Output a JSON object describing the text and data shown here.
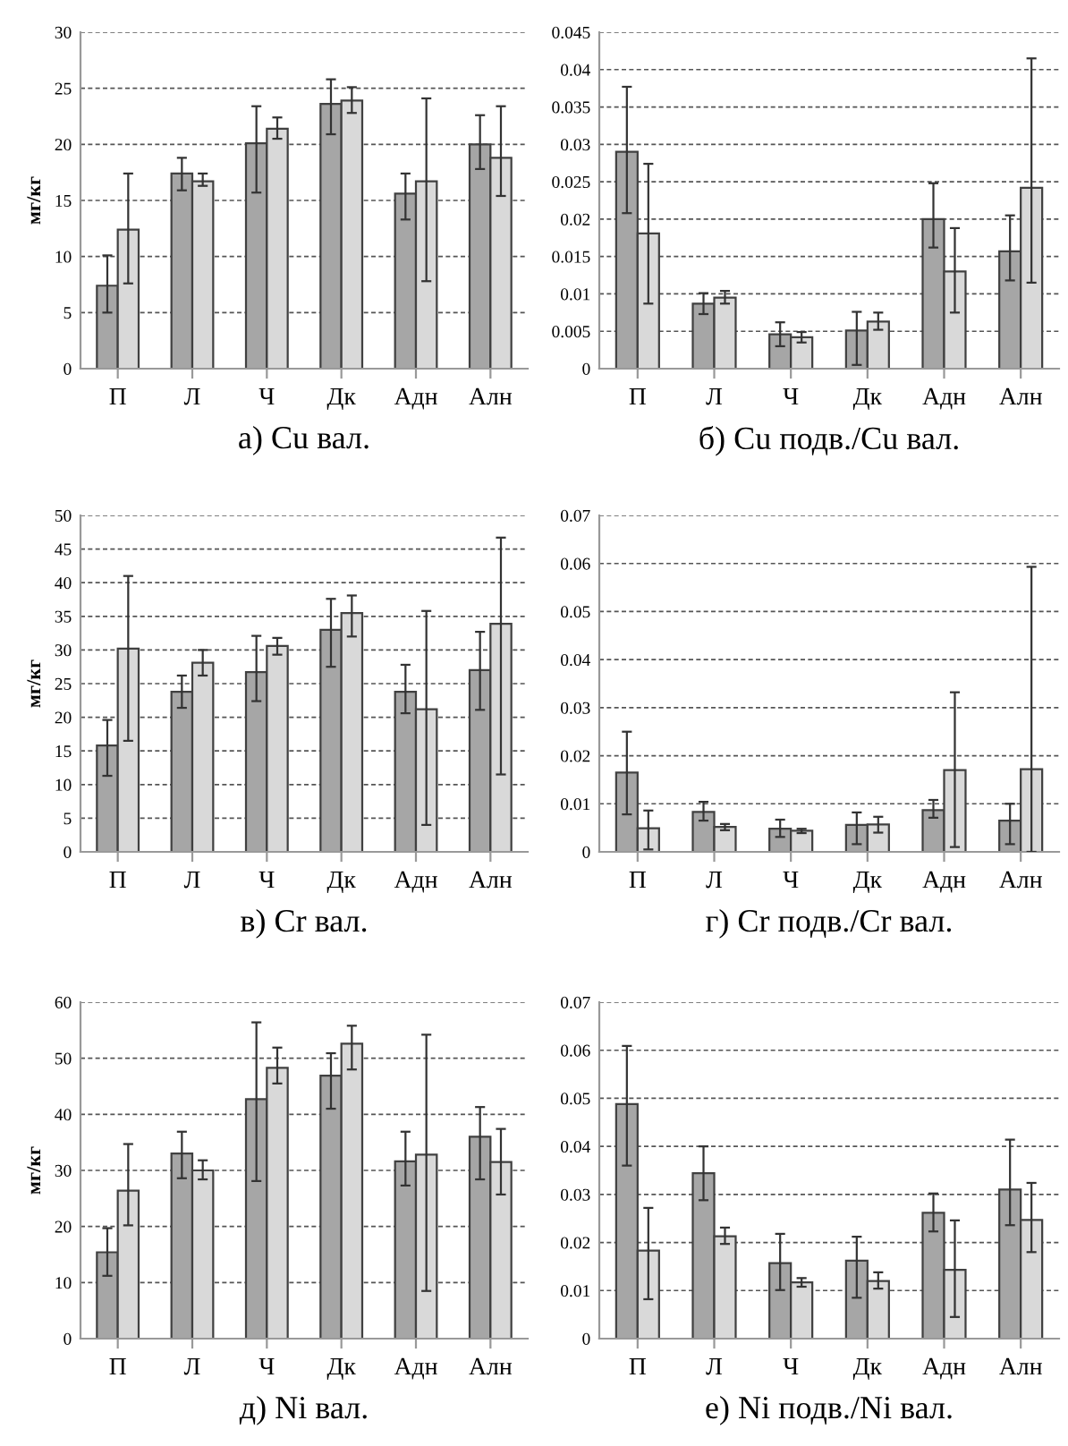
{
  "chart_data": [
    {
      "type": "bar",
      "title": "а) Cu вал.",
      "ylabel": "мг/кг",
      "categories": [
        "П",
        "Л",
        "Ч",
        "Дк",
        "Адн",
        "Алн"
      ],
      "ylim": [
        0,
        30
      ],
      "yticks": [
        0,
        5,
        10,
        15,
        20,
        25,
        30
      ],
      "grid": "y",
      "series": [
        {
          "color": "#a6a6a6",
          "values": [
            7.4,
            17.4,
            20.1,
            23.6,
            15.6,
            20.0
          ],
          "errors": [
            [
              5.0,
              10.1
            ],
            [
              15.9,
              18.8
            ],
            [
              15.7,
              23.4
            ],
            [
              20.9,
              25.8
            ],
            [
              13.3,
              17.4
            ],
            [
              17.8,
              22.6
            ]
          ]
        },
        {
          "color": "#d9d9d9",
          "values": [
            12.4,
            16.7,
            21.4,
            23.9,
            16.7,
            18.8
          ],
          "errors": [
            [
              7.6,
              17.4
            ],
            [
              16.3,
              17.4
            ],
            [
              20.5,
              22.4
            ],
            [
              22.8,
              25.1
            ],
            [
              7.8,
              24.1
            ],
            [
              15.4,
              23.4
            ]
          ]
        }
      ]
    },
    {
      "type": "bar",
      "title": "б) Cu подв./Cu вал.",
      "categories": [
        "П",
        "Л",
        "Ч",
        "Дк",
        "Адн",
        "Алн"
      ],
      "ylim": [
        0,
        0.045
      ],
      "yticks": [
        0,
        0.005,
        0.01,
        0.015,
        0.02,
        0.025,
        0.03,
        0.035,
        0.04,
        0.045
      ],
      "grid": "y",
      "series": [
        {
          "color": "#a6a6a6",
          "values": [
            0.029,
            0.0087,
            0.0046,
            0.0051,
            0.02,
            0.0157
          ],
          "errors": [
            [
              0.0208,
              0.0377
            ],
            [
              0.0073,
              0.0101
            ],
            [
              0.003,
              0.0062
            ],
            [
              0.0005,
              0.0076
            ],
            [
              0.0162,
              0.0248
            ],
            [
              0.0118,
              0.0205
            ]
          ]
        },
        {
          "color": "#d9d9d9",
          "values": [
            0.0181,
            0.0095,
            0.0042,
            0.0063,
            0.013,
            0.0242
          ],
          "errors": [
            [
              0.0087,
              0.0274
            ],
            [
              0.0087,
              0.0104
            ],
            [
              0.0035,
              0.0049
            ],
            [
              0.0052,
              0.0075
            ],
            [
              0.0075,
              0.0188
            ],
            [
              0.0115,
              0.0415
            ]
          ]
        }
      ]
    },
    {
      "type": "bar",
      "title": "в) Cr вал.",
      "ylabel": "мг/кг",
      "categories": [
        "П",
        "Л",
        "Ч",
        "Дк",
        "Адн",
        "Алн"
      ],
      "ylim": [
        0,
        50
      ],
      "yticks": [
        0,
        5,
        10,
        15,
        20,
        25,
        30,
        35,
        40,
        45,
        50
      ],
      "grid": "y",
      "series": [
        {
          "color": "#a6a6a6",
          "values": [
            15.8,
            23.8,
            26.7,
            33.0,
            23.8,
            27.0
          ],
          "errors": [
            [
              11.3,
              19.6
            ],
            [
              21.4,
              26.2
            ],
            [
              22.4,
              32.1
            ],
            [
              27.5,
              37.6
            ],
            [
              20.6,
              27.8
            ],
            [
              21.1,
              32.7
            ]
          ]
        },
        {
          "color": "#d9d9d9",
          "values": [
            30.2,
            28.1,
            30.6,
            35.5,
            21.2,
            33.9
          ],
          "errors": [
            [
              16.5,
              41.0
            ],
            [
              26.2,
              30.0
            ],
            [
              29.3,
              31.8
            ],
            [
              32.0,
              38.1
            ],
            [
              4.0,
              35.8
            ],
            [
              11.5,
              46.7
            ]
          ]
        }
      ]
    },
    {
      "type": "bar",
      "title": "г) Cr подв./Cr вал.",
      "categories": [
        "П",
        "Л",
        "Ч",
        "Дк",
        "Адн",
        "Алн"
      ],
      "ylim": [
        0,
        0.07
      ],
      "yticks": [
        0,
        0.01,
        0.02,
        0.03,
        0.04,
        0.05,
        0.06,
        0.07
      ],
      "grid": "y",
      "series": [
        {
          "color": "#a6a6a6",
          "values": [
            0.0165,
            0.0083,
            0.0048,
            0.0056,
            0.0087,
            0.0065
          ],
          "errors": [
            [
              0.0078,
              0.025
            ],
            [
              0.0065,
              0.0104
            ],
            [
              0.0031,
              0.0067
            ],
            [
              0.0016,
              0.0082
            ],
            [
              0.0071,
              0.0108
            ],
            [
              0.0016,
              0.01
            ]
          ]
        },
        {
          "color": "#d9d9d9",
          "values": [
            0.0049,
            0.0052,
            0.0044,
            0.0057,
            0.017,
            0.0172
          ],
          "errors": [
            [
              0.0005,
              0.0086
            ],
            [
              0.0045,
              0.0058
            ],
            [
              0.0039,
              0.0048
            ],
            [
              0.004,
              0.0073
            ],
            [
              0.001,
              0.0332
            ],
            [
              0.0,
              0.0593
            ]
          ]
        }
      ]
    },
    {
      "type": "bar",
      "title": "д) Ni вал.",
      "ylabel": "мг/кг",
      "categories": [
        "П",
        "Л",
        "Ч",
        "Дк",
        "Адн",
        "Алн"
      ],
      "ylim": [
        0,
        60
      ],
      "yticks": [
        0,
        10,
        20,
        30,
        40,
        50,
        60
      ],
      "grid": "y",
      "series": [
        {
          "color": "#a6a6a6",
          "values": [
            15.4,
            33.0,
            42.7,
            46.9,
            31.6,
            36.0
          ],
          "errors": [
            [
              11.2,
              19.7
            ],
            [
              28.6,
              36.9
            ],
            [
              28.1,
              56.4
            ],
            [
              41.0,
              50.9
            ],
            [
              27.3,
              36.9
            ],
            [
              28.4,
              41.3
            ]
          ]
        },
        {
          "color": "#d9d9d9",
          "values": [
            26.4,
            30.0,
            48.3,
            52.6,
            32.8,
            31.5
          ],
          "errors": [
            [
              20.2,
              34.7
            ],
            [
              28.4,
              31.8
            ],
            [
              45.5,
              51.9
            ],
            [
              48.0,
              55.8
            ],
            [
              8.5,
              54.2
            ],
            [
              25.7,
              37.4
            ]
          ]
        }
      ]
    },
    {
      "type": "bar",
      "title": "е) Ni подв./Ni вал.",
      "categories": [
        "П",
        "Л",
        "Ч",
        "Дк",
        "Адн",
        "Алн"
      ],
      "ylim": [
        0,
        0.07
      ],
      "yticks": [
        0,
        0.01,
        0.02,
        0.03,
        0.04,
        0.05,
        0.06,
        0.07
      ],
      "grid": "y",
      "series": [
        {
          "color": "#a6a6a6",
          "values": [
            0.0488,
            0.0344,
            0.0157,
            0.0162,
            0.0262,
            0.031
          ],
          "errors": [
            [
              0.036,
              0.0609
            ],
            [
              0.0288,
              0.04
            ],
            [
              0.0101,
              0.0218
            ],
            [
              0.0085,
              0.0212
            ],
            [
              0.0223,
              0.0302
            ],
            [
              0.0236,
              0.0414
            ]
          ]
        },
        {
          "color": "#d9d9d9",
          "values": [
            0.0183,
            0.0213,
            0.0117,
            0.012,
            0.0143,
            0.0247
          ],
          "errors": [
            [
              0.0082,
              0.0272
            ],
            [
              0.0197,
              0.0231
            ],
            [
              0.0108,
              0.0126
            ],
            [
              0.0104,
              0.0138
            ],
            [
              0.0045,
              0.0246
            ],
            [
              0.018,
              0.0324
            ]
          ]
        }
      ]
    }
  ]
}
